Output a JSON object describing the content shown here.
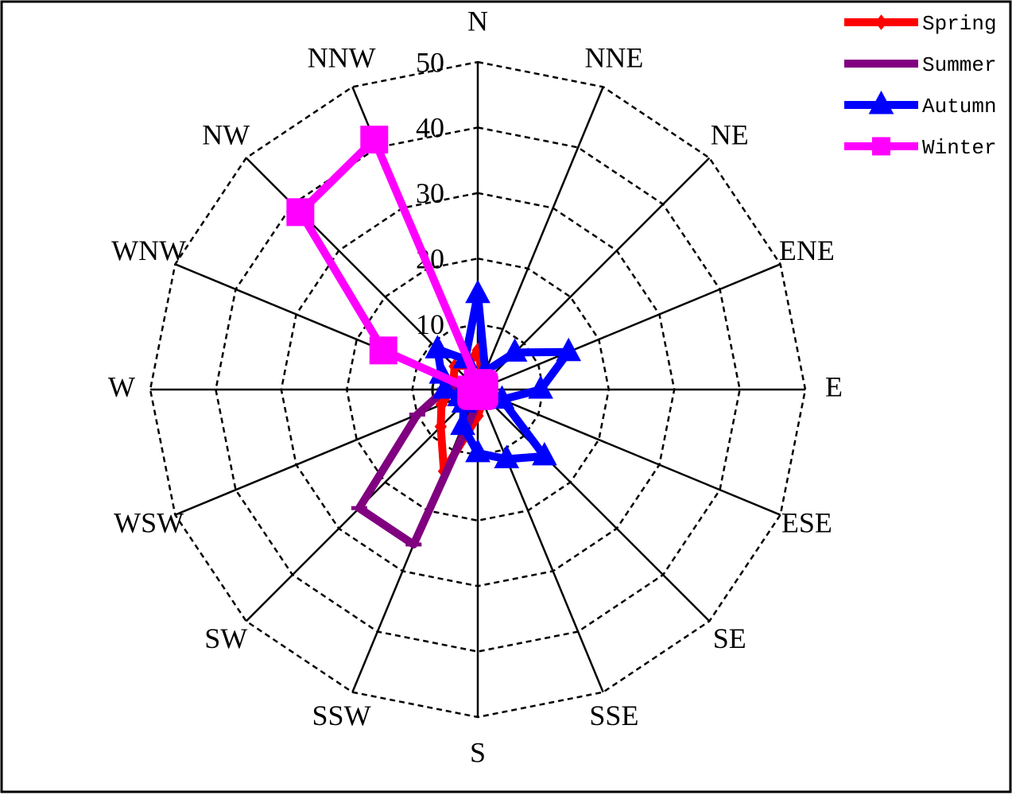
{
  "chart_data": {
    "type": "radar",
    "categories": [
      "N",
      "NNE",
      "NE",
      "ENE",
      "E",
      "ESE",
      "SE",
      "SSE",
      "S",
      "SSW",
      "SW",
      "WSW",
      "W",
      "WNW",
      "NW",
      "NNW"
    ],
    "rlim": [
      0,
      50
    ],
    "rticks": [
      0,
      10,
      20,
      30,
      40,
      50
    ],
    "grid": true,
    "legend": "upper right",
    "series": [
      {
        "name": "Spring",
        "color": "#ff0000",
        "marker": "diamond",
        "values": [
          6,
          2,
          1,
          1,
          1,
          1,
          1,
          2,
          4,
          13.5,
          8,
          6,
          4,
          4,
          5,
          4
        ]
      },
      {
        "name": "Summer",
        "color": "#800080",
        "marker": "dash",
        "values": [
          1,
          1,
          1,
          1,
          1,
          1,
          1,
          1,
          2,
          25.6,
          25.6,
          10,
          5,
          2,
          1,
          1
        ]
      },
      {
        "name": "Autumn",
        "color": "#0000ff",
        "marker": "triangle",
        "values": [
          14.6,
          3,
          8,
          15,
          9.6,
          4,
          14.4,
          11.5,
          9.7,
          6,
          3,
          3,
          5,
          6,
          8.7,
          5
        ]
      },
      {
        "name": "Winter",
        "color": "#ff00ff",
        "marker": "square",
        "values": [
          1,
          1,
          1,
          1,
          1,
          1,
          1,
          1,
          1,
          1,
          1,
          1,
          1,
          15.6,
          38.3,
          41.3
        ]
      }
    ]
  }
}
